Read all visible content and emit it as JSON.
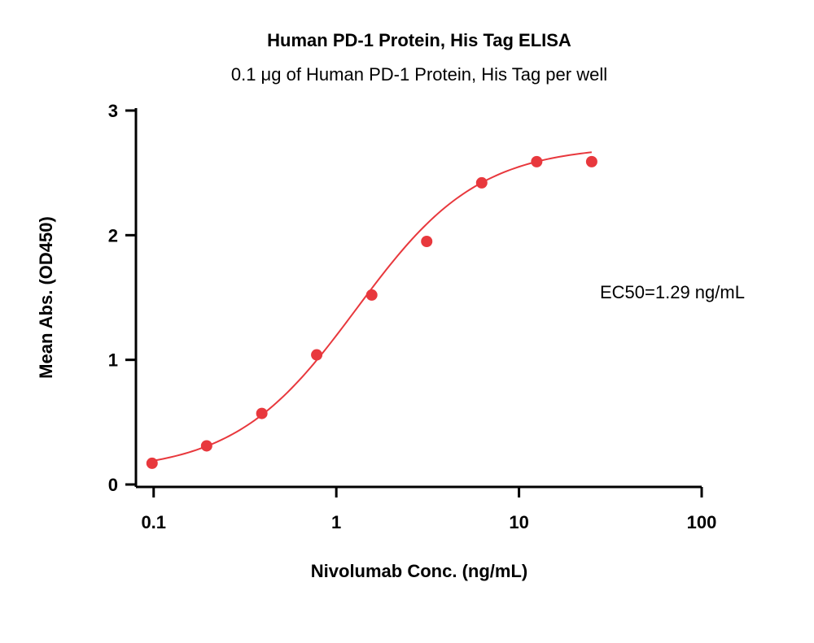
{
  "chart_data": {
    "type": "scatter",
    "title": "Human PD-1 Protein, His Tag ELISA",
    "subtitle": "0.1 μg of Human PD-1 Protein, His Tag per well",
    "xlabel": "Nivolumab Conc. (ng/mL)",
    "ylabel": "Mean Abs. (OD450)",
    "xscale": "log",
    "xlim": [
      0.08,
      100
    ],
    "ylim": [
      0,
      3
    ],
    "xticks": [
      0.1,
      1,
      10,
      100
    ],
    "xtick_labels": [
      "0.1",
      "1",
      "10",
      "100"
    ],
    "yticks": [
      0,
      1,
      2,
      3
    ],
    "ytick_labels": [
      "0",
      "1",
      "2",
      "3"
    ],
    "grid": false,
    "color": "#e8383d",
    "series": [
      {
        "x": [
          0.098,
          0.195,
          0.391,
          0.781,
          1.563,
          3.125,
          6.25,
          12.5,
          25
        ],
        "y": [
          0.17,
          0.31,
          0.57,
          1.04,
          1.52,
          1.95,
          2.42,
          2.59,
          2.59
        ]
      }
    ],
    "fit_curve": {
      "type": "4PL",
      "bottom": 0.1,
      "top": 2.72,
      "ec50": 1.29,
      "hill": 1.3,
      "x_range": [
        0.098,
        25
      ]
    },
    "annotations": [
      {
        "text": "EC50=1.29 ng/mL"
      }
    ]
  }
}
